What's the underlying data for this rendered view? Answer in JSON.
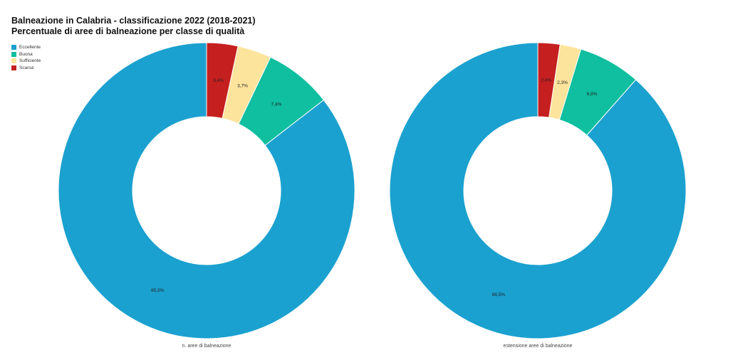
{
  "header": {
    "title": "Balneazione in Calabria - classificazione 2022 (2018-2021)",
    "subtitle": "Percentuale di aree di balneazione per classe di qualità"
  },
  "chart_data": [
    {
      "type": "pie",
      "donut": true,
      "caption": "n. aree di balneazione",
      "categories": [
        "Eccellente",
        "Buona",
        "Sufficiente",
        "Scarsa"
      ],
      "values": [
        85.5,
        7.4,
        3.7,
        3.4
      ],
      "value_labels": [
        "85,5%",
        "7,4%",
        "3,7%",
        "3,4%"
      ],
      "colors": [
        "#1ba1cf",
        "#0fbf9f",
        "#fde49c",
        "#c51f1f"
      ],
      "legend": "top-left"
    },
    {
      "type": "pie",
      "donut": true,
      "caption": "estensione aree di balneazione",
      "categories": [
        "Eccellente",
        "Buona",
        "Sufficiente",
        "Scarsa"
      ],
      "values": [
        88.5,
        6.8,
        2.3,
        2.4
      ],
      "value_labels": [
        "88,5%",
        "6,8%",
        "2,3%",
        "2,4%"
      ],
      "colors": [
        "#1ba1cf",
        "#0fbf9f",
        "#fde49c",
        "#c51f1f"
      ],
      "legend": "top-left"
    }
  ],
  "legend": {
    "items": [
      {
        "label": "Eccellente",
        "color": "#1ba1cf"
      },
      {
        "label": "Buona",
        "color": "#0fbf9f"
      },
      {
        "label": "Sufficiente",
        "color": "#fde49c"
      },
      {
        "label": "Scarsa",
        "color": "#c51f1f"
      }
    ]
  }
}
